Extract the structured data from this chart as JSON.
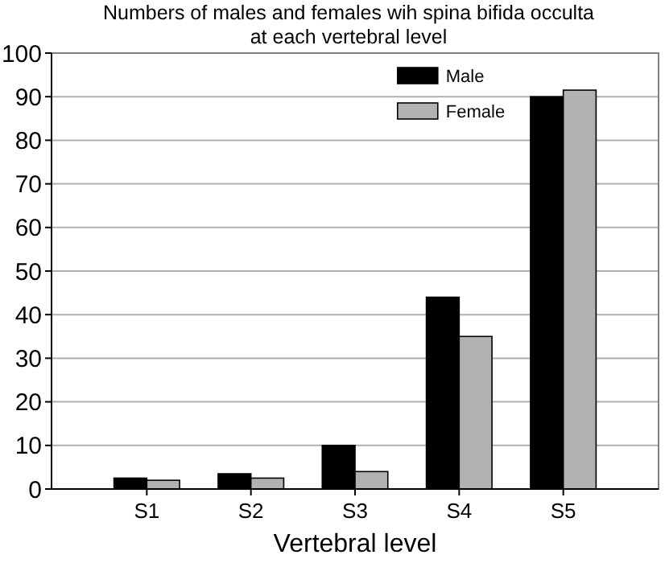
{
  "chart_data": {
    "type": "bar",
    "title": "Numbers of males and females wih spina bifida occulta\nat each vertebral level",
    "xlabel": "Vertebral level",
    "categories": [
      "S1",
      "S2",
      "S3",
      "S4",
      "S5"
    ],
    "series": [
      {
        "name": "Male",
        "color": "#000000",
        "values": [
          2.5,
          3.5,
          10,
          44,
          90
        ]
      },
      {
        "name": "Female",
        "color": "#b2b2b2",
        "values": [
          2,
          2.5,
          4,
          35,
          91.5
        ]
      }
    ],
    "ylim": [
      0,
      100
    ],
    "yticks": [
      0,
      10,
      20,
      30,
      40,
      50,
      60,
      70,
      80,
      90,
      100
    ],
    "grid": "y",
    "legend": "top right"
  }
}
